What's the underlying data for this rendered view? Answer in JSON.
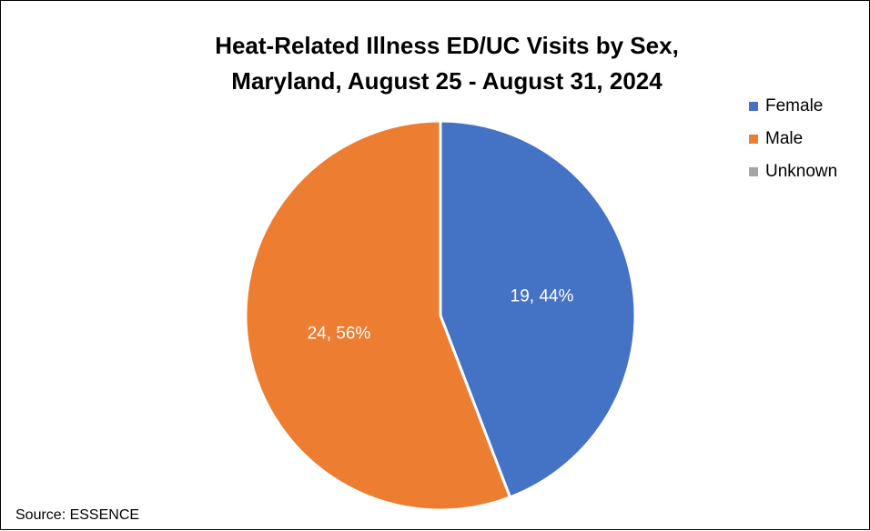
{
  "chart_data": {
    "type": "pie",
    "title_line1": "Heat-Related Illness ED/UC Visits by Sex,",
    "title_line2": "Maryland, August 25 - August 31, 2024",
    "categories": [
      "Female",
      "Male",
      "Unknown"
    ],
    "values": [
      19,
      24,
      0
    ],
    "percentages": [
      44,
      56,
      0
    ],
    "data_labels": [
      "19, 44%",
      "24, 56%",
      ""
    ],
    "colors": [
      "#4472C4",
      "#ED7D31",
      "#A5A5A5"
    ],
    "legend_position": "right"
  },
  "legend": {
    "items": [
      {
        "label": "Female",
        "color": "#4472C4"
      },
      {
        "label": "Male",
        "color": "#ED7D31"
      },
      {
        "label": "Unknown",
        "color": "#A5A5A5"
      }
    ]
  },
  "footer": {
    "source": "Source: ESSENCE"
  }
}
